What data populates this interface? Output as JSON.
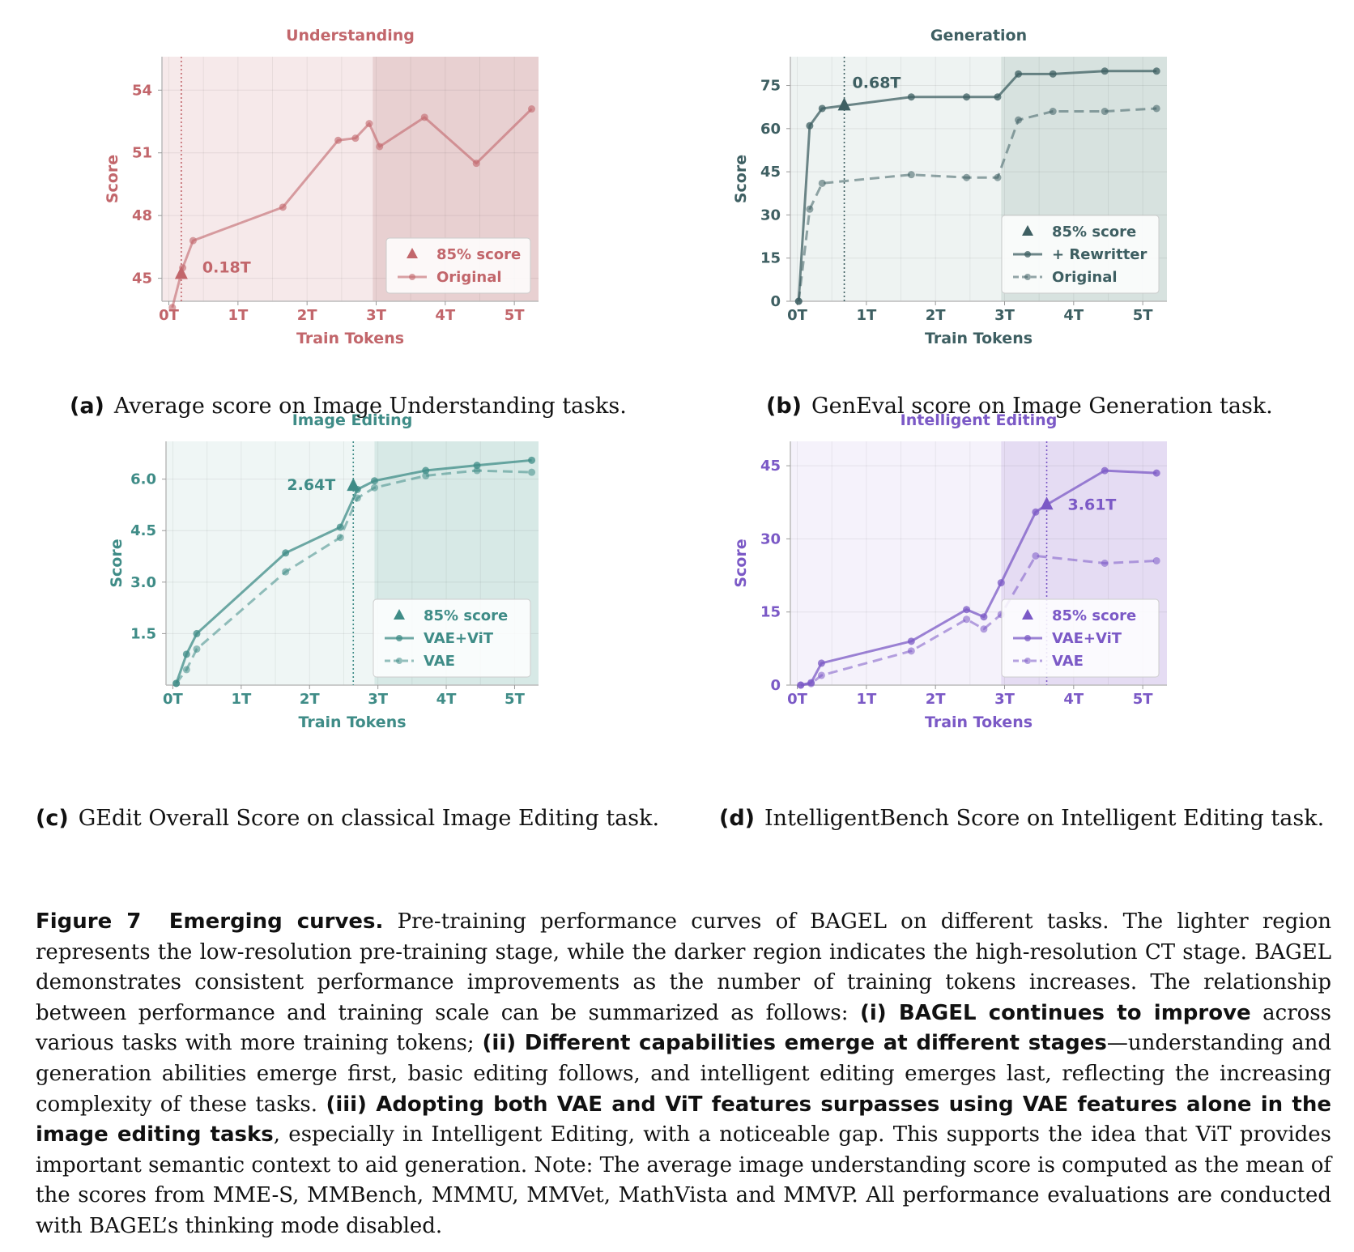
{
  "chart_data": [
    {
      "id": "a",
      "type": "line",
      "title": "Understanding",
      "xlabel": "Train Tokens",
      "ylabel": "Score",
      "xlim": [
        -0.1,
        5.35
      ],
      "ylim": [
        43.9,
        55.6
      ],
      "xticks": [
        0,
        1,
        2,
        3,
        4,
        5
      ],
      "xtick_labels": [
        "0T",
        "1T",
        "2T",
        "3T",
        "4T",
        "5T"
      ],
      "yticks": [
        45,
        48,
        51,
        54
      ],
      "ytick_labels": [
        "45",
        "48",
        "51",
        "54"
      ],
      "color": "#c2666b",
      "bg_light": "#f6e9ea",
      "bg_dark": "#e8d0d1",
      "ct_start": 2.95,
      "marker": {
        "x": 0.18,
        "y": 45.2,
        "label": "0.18T"
      },
      "vline": 0.18,
      "grid": true,
      "legend_placement": "lower-right",
      "legend": [
        "85% score",
        "Original"
      ],
      "series": [
        {
          "name": "Original",
          "dashed": false,
          "opacity": 0.6,
          "x": [
            0.05,
            0.2,
            0.35,
            1.65,
            2.45,
            2.7,
            2.9,
            3.05,
            3.7,
            4.45,
            5.25
          ],
          "y": [
            43.6,
            45.5,
            46.8,
            48.4,
            51.6,
            51.7,
            52.4,
            51.3,
            52.7,
            50.5,
            53.1
          ]
        }
      ]
    },
    {
      "id": "b",
      "type": "line",
      "title": "Generation",
      "xlabel": "Train Tokens",
      "ylabel": "Score",
      "xlim": [
        -0.1,
        5.35
      ],
      "ylim": [
        0,
        85
      ],
      "xticks": [
        0,
        1,
        2,
        3,
        4,
        5
      ],
      "xtick_labels": [
        "0T",
        "1T",
        "2T",
        "3T",
        "4T",
        "5T"
      ],
      "yticks": [
        0,
        15,
        30,
        45,
        60,
        75
      ],
      "ytick_labels": [
        "0",
        "15",
        "30",
        "45",
        "60",
        "75"
      ],
      "color": "#3e5f62",
      "bg_light": "#eef3f2",
      "bg_dark": "#d7e2df",
      "ct_start": 2.95,
      "marker": {
        "x": 0.68,
        "y": 68,
        "label": "0.68T"
      },
      "vline": 0.68,
      "grid": true,
      "legend_placement": "lower-right",
      "legend": [
        "85% score",
        "+ Rewritter",
        "Original"
      ],
      "series": [
        {
          "name": "+ Rewritter",
          "dashed": false,
          "opacity": 0.75,
          "x": [
            0.02,
            0.18,
            0.36,
            0.68,
            1.65,
            2.45,
            2.9,
            3.2,
            3.7,
            4.45,
            5.2
          ],
          "y": [
            0,
            61,
            67,
            68,
            71,
            71,
            71,
            79,
            79,
            80,
            80
          ]
        },
        {
          "name": "Original",
          "dashed": true,
          "opacity": 0.55,
          "x": [
            0.02,
            0.18,
            0.36,
            1.65,
            2.45,
            2.9,
            3.2,
            3.7,
            4.45,
            5.2
          ],
          "y": [
            0,
            32,
            41,
            44,
            43,
            43,
            63,
            66,
            66,
            67
          ]
        }
      ]
    },
    {
      "id": "c",
      "type": "line",
      "title": "Image Editing",
      "xlabel": "Train Tokens",
      "ylabel": "Score",
      "xlim": [
        -0.1,
        5.35
      ],
      "ylim": [
        0,
        7.1
      ],
      "xticks": [
        0,
        1,
        2,
        3,
        4,
        5
      ],
      "xtick_labels": [
        "0T",
        "1T",
        "2T",
        "3T",
        "4T",
        "5T"
      ],
      "yticks": [
        1.5,
        3,
        4.5,
        6
      ],
      "ytick_labels": [
        "1.5",
        "3.0",
        "4.5",
        "6.0"
      ],
      "color": "#3f8c87",
      "bg_light": "#eff6f5",
      "bg_dark": "#d7e9e6",
      "ct_start": 2.95,
      "marker": {
        "x": 2.64,
        "y": 5.8,
        "label": "2.64T"
      },
      "vline": 2.64,
      "grid": true,
      "legend_placement": "lower-right",
      "legend": [
        "85% score",
        "VAE+ViT",
        "VAE"
      ],
      "series": [
        {
          "name": "VAE+ViT",
          "dashed": false,
          "opacity": 0.75,
          "x": [
            0.05,
            0.2,
            0.35,
            1.65,
            2.45,
            2.7,
            2.95,
            3.7,
            4.45,
            5.25
          ],
          "y": [
            0.05,
            0.9,
            1.5,
            3.85,
            4.6,
            5.7,
            5.95,
            6.25,
            6.4,
            6.55
          ]
        },
        {
          "name": "VAE",
          "dashed": true,
          "opacity": 0.55,
          "x": [
            0.05,
            0.2,
            0.35,
            1.65,
            2.45,
            2.7,
            2.95,
            3.7,
            4.45,
            5.25
          ],
          "y": [
            0.05,
            0.45,
            1.05,
            3.3,
            4.3,
            5.45,
            5.75,
            6.1,
            6.25,
            6.2
          ]
        }
      ]
    },
    {
      "id": "d",
      "type": "line",
      "title": "Intelligent Editing",
      "xlabel": "Train Tokens",
      "ylabel": "Score",
      "xlim": [
        -0.1,
        5.35
      ],
      "ylim": [
        0,
        50
      ],
      "xticks": [
        0,
        1,
        2,
        3,
        4,
        5
      ],
      "xtick_labels": [
        "0T",
        "1T",
        "2T",
        "3T",
        "4T",
        "5T"
      ],
      "yticks": [
        0,
        15,
        30,
        45
      ],
      "ytick_labels": [
        "0",
        "15",
        "30",
        "45"
      ],
      "color": "#7b59c6",
      "bg_light": "#f5f2fb",
      "bg_dark": "#e5dcf3",
      "ct_start": 2.95,
      "marker": {
        "x": 3.61,
        "y": 37,
        "label": "3.61T"
      },
      "vline": 3.61,
      "grid": true,
      "legend_placement": "lower-right",
      "legend": [
        "85% score",
        "VAE+ViT",
        "VAE"
      ],
      "series": [
        {
          "name": "VAE+ViT",
          "dashed": false,
          "opacity": 0.75,
          "x": [
            0.05,
            0.2,
            0.35,
            1.65,
            2.45,
            2.7,
            2.95,
            3.45,
            3.61,
            4.45,
            5.2
          ],
          "y": [
            0,
            0.5,
            4.5,
            9,
            15.5,
            14,
            21,
            35.5,
            37,
            44,
            43.5
          ]
        },
        {
          "name": "VAE",
          "dashed": true,
          "opacity": 0.55,
          "x": [
            0.05,
            0.2,
            0.35,
            1.65,
            2.45,
            2.7,
            2.95,
            3.45,
            4.45,
            5.2
          ],
          "y": [
            0,
            0.3,
            2,
            7,
            13.5,
            11.5,
            14.5,
            26.5,
            25,
            25.5
          ]
        }
      ]
    }
  ],
  "captions": {
    "a": {
      "label": "(a)",
      "text": "Average score on Image Understanding tasks."
    },
    "b": {
      "label": "(b)",
      "text": "GenEval score on Image Generation task."
    },
    "c": {
      "label": "(c)",
      "text": "GEdit Overall Score on classical Image Editing task."
    },
    "d": {
      "label": "(d)",
      "text": "IntelligentBench Score on Intelligent Editing task."
    }
  },
  "figure": {
    "label": "Figure 7",
    "heading": "Emerging curves.",
    "text1": " Pre-training performance curves of BAGEL on different tasks. The lighter region represents the low-resolution pre-training stage, while the darker region indicates the high-resolution CT stage. BAGEL demonstrates consistent performance improvements as the number of training tokens increases. The relationship between performance and training scale can be summarized as follows: ",
    "bold1": "(i) BAGEL continues to improve",
    "text2": " across various tasks with more training tokens; ",
    "bold2": "(ii) Different capabilities emerge at different stages",
    "text3": "—understanding and generation abilities emerge first, basic editing follows, and intelligent editing emerges last, reflecting the increasing complexity of these tasks. ",
    "bold3": "(iii) Adopting both VAE and ViT features surpasses using VAE features alone in the image editing tasks",
    "text4": ", especially in Intelligent Editing, with a noticeable gap. This supports the idea that ViT provides important semantic context to aid generation. Note: The average image understanding score is computed as the mean of the scores from MME-S, MMBench, MMMU, MMVet, MathVista and MMVP. All performance evaluations are conducted with BAGEL’s thinking mode disabled."
  }
}
